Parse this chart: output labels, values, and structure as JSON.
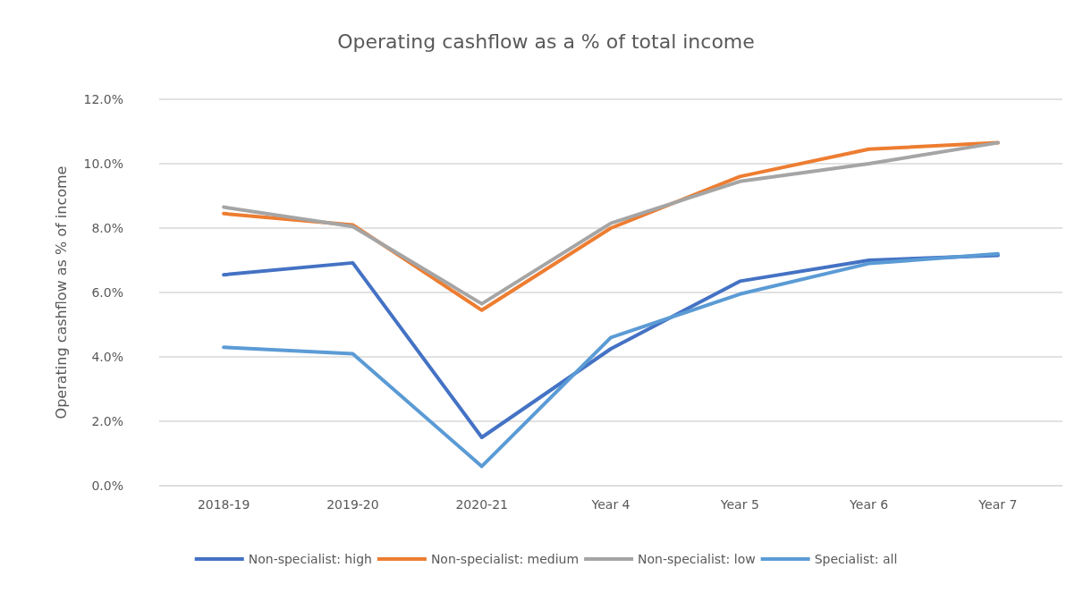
{
  "chart_data": {
    "type": "line",
    "title": "Operating cashflow as a % of total income",
    "ylabel": "Operating cashflow as % of income",
    "categories": [
      "2018-19",
      "2019-20",
      "2020-21",
      "Year 4",
      "Year 5",
      "Year 6",
      "Year 7"
    ],
    "series": [
      {
        "name": "Non-specialist: high",
        "color": "#4472c4",
        "values": [
          6.55,
          6.92,
          1.5,
          4.25,
          6.35,
          7.0,
          7.15
        ]
      },
      {
        "name": "Non-specialist: medium",
        "color": "#ed7d31",
        "values": [
          8.45,
          8.1,
          5.45,
          8.0,
          9.6,
          10.45,
          10.65
        ]
      },
      {
        "name": "Non-specialist: low",
        "color": "#a5a5a5",
        "values": [
          8.65,
          8.05,
          5.65,
          8.15,
          9.45,
          10.0,
          10.65
        ]
      },
      {
        "name": "Specialist: all",
        "color": "#5b9bd5",
        "values": [
          4.3,
          4.1,
          0.6,
          4.6,
          5.95,
          6.9,
          7.2
        ]
      }
    ],
    "ylim": [
      0,
      12
    ],
    "yticks": [
      {
        "value": 0,
        "label": "0.0%"
      },
      {
        "value": 2,
        "label": "2.0%"
      },
      {
        "value": 4,
        "label": "4.0%"
      },
      {
        "value": 6,
        "label": "6.0%"
      },
      {
        "value": 8,
        "label": "8.0%"
      },
      {
        "value": 10,
        "label": "10.0%"
      },
      {
        "value": 12,
        "label": "12.0%"
      }
    ],
    "grid": "y",
    "legend": "bottom",
    "marker": "none",
    "line_style": "solid"
  }
}
